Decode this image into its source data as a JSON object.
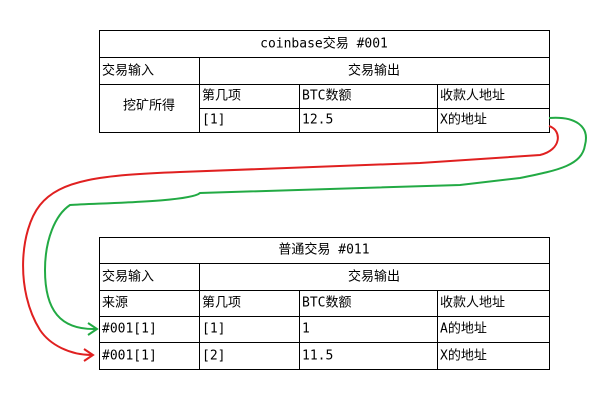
{
  "tables": [
    {
      "title": "coinbase交易 #001",
      "input_header": "交易输入",
      "output_header": "交易输出",
      "input_value": "挖矿所得",
      "columns": [
        "第几项",
        "BTC数额",
        "收款人地址"
      ],
      "rows": [
        [
          "[1]",
          "12.5",
          "X的地址"
        ]
      ]
    },
    {
      "title": "普通交易 #011",
      "input_header": "交易输入",
      "output_header": "交易输出",
      "columns": [
        "来源",
        "第几项",
        "BTC数额",
        "收款人地址"
      ],
      "rows": [
        [
          "#001[1]",
          "[1]",
          "1",
          "A的地址"
        ],
        [
          "#001[1]",
          "[2]",
          "11.5",
          "X的地址"
        ]
      ]
    }
  ]
}
